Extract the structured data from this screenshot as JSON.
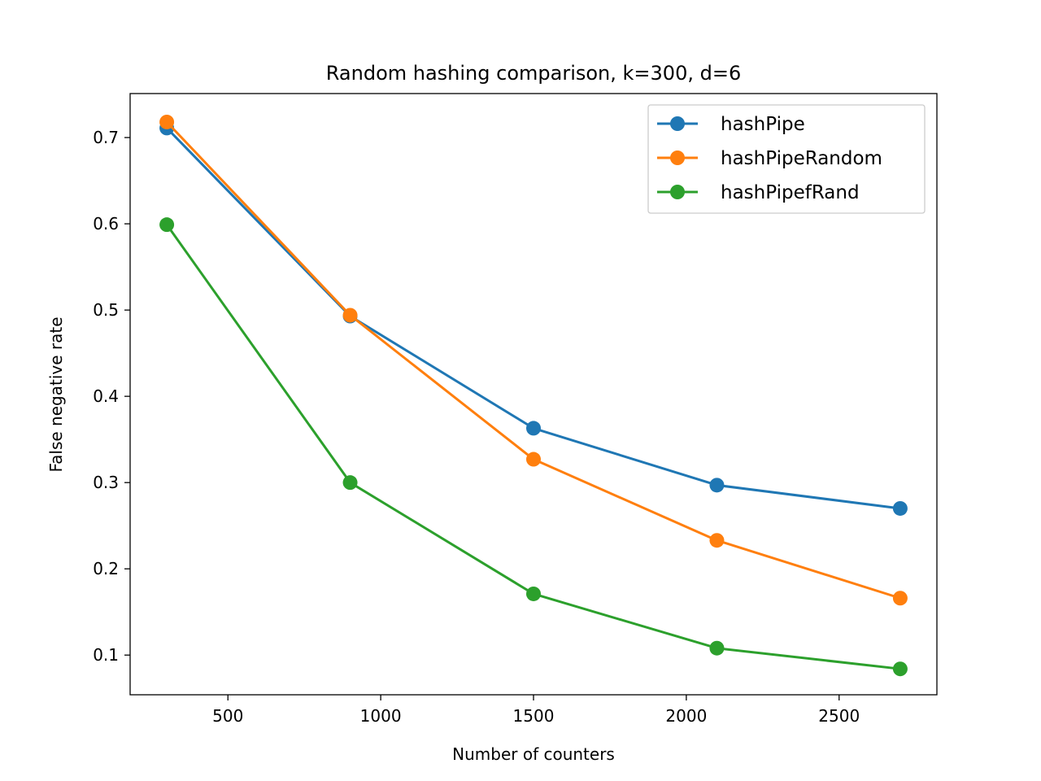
{
  "chart_data": {
    "type": "line",
    "title": "Random hashing comparison, k=300, d=6",
    "xlabel": "Number of counters",
    "ylabel": "False negative rate",
    "xlim": [
      180,
      2820
    ],
    "ylim": [
      0.054,
      0.751
    ],
    "xticks": [
      500,
      1000,
      1500,
      2000,
      2500
    ],
    "yticks": [
      0.1,
      0.2,
      0.3,
      0.4,
      0.5,
      0.6,
      0.7
    ],
    "x": [
      300,
      900,
      1500,
      2100,
      2700
    ],
    "grid": false,
    "legend": "top-right",
    "series": [
      {
        "name": "hashPipe",
        "color": "#1f77b4",
        "values": [
          0.711,
          0.493,
          0.363,
          0.297,
          0.27
        ]
      },
      {
        "name": "hashPipeRandom",
        "color": "#ff7f0e",
        "values": [
          0.718,
          0.494,
          0.327,
          0.233,
          0.166
        ]
      },
      {
        "name": "hashPipefRand",
        "color": "#2ca02c",
        "values": [
          0.599,
          0.3,
          0.171,
          0.108,
          0.084
        ]
      }
    ]
  }
}
